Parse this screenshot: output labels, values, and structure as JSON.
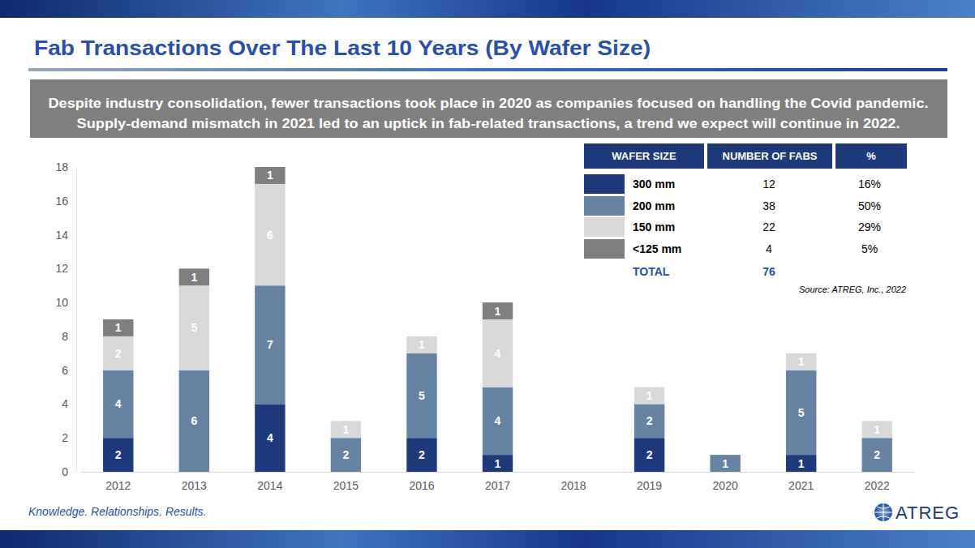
{
  "chart_data": {
    "type": "bar",
    "stacked": true,
    "data_labels": true,
    "grid": false,
    "legend": "top-right",
    "title": "Fab Transactions Over The Last 10 Years (By Wafer Size)",
    "subtitle": [
      "Despite industry consolidation, fewer transactions took place in 2020 as companies focused on handling the Covid pandemic.",
      "Supply-demand mismatch in 2021 led to an uptick in fab-related transactions, a trend we expect will continue in 2022."
    ],
    "source": "Source: ATREG, Inc., 2022",
    "categories": [
      "2012",
      "2013",
      "2014",
      "2015",
      "2016",
      "2017",
      "2018",
      "2019",
      "2020",
      "2021",
      "2022"
    ],
    "series": [
      {
        "name": "300 mm",
        "color": "#1f3a7a",
        "values": [
          2,
          0,
          4,
          0,
          2,
          1,
          0,
          2,
          0,
          1,
          0
        ]
      },
      {
        "name": "200 mm",
        "color": "#6683a3",
        "values": [
          4,
          6,
          7,
          2,
          5,
          4,
          0,
          2,
          1,
          5,
          2
        ]
      },
      {
        "name": "150 mm",
        "color": "#d9d9d9",
        "values": [
          2,
          5,
          6,
          1,
          1,
          4,
          0,
          1,
          0,
          1,
          1
        ]
      },
      {
        "name": "<125 mm",
        "color": "#7f7f7f",
        "values": [
          1,
          1,
          1,
          0,
          0,
          1,
          0,
          0,
          0,
          0,
          0
        ]
      }
    ],
    "ylim": [
      0,
      18
    ],
    "yticks": [
      0,
      2,
      4,
      6,
      8,
      10,
      12,
      14,
      16,
      18
    ],
    "table": {
      "headers": [
        "WAFER SIZE",
        "NUMBER OF FABS",
        "%"
      ],
      "fabs": [
        12,
        38,
        22,
        4
      ],
      "percent_labels": [
        "16%",
        "50%",
        "29%",
        "5%"
      ],
      "total_label": "TOTAL",
      "total": 76
    }
  },
  "page": {
    "tagline": "Knowledge. Relationships. Results.",
    "logo": "ATREG"
  }
}
